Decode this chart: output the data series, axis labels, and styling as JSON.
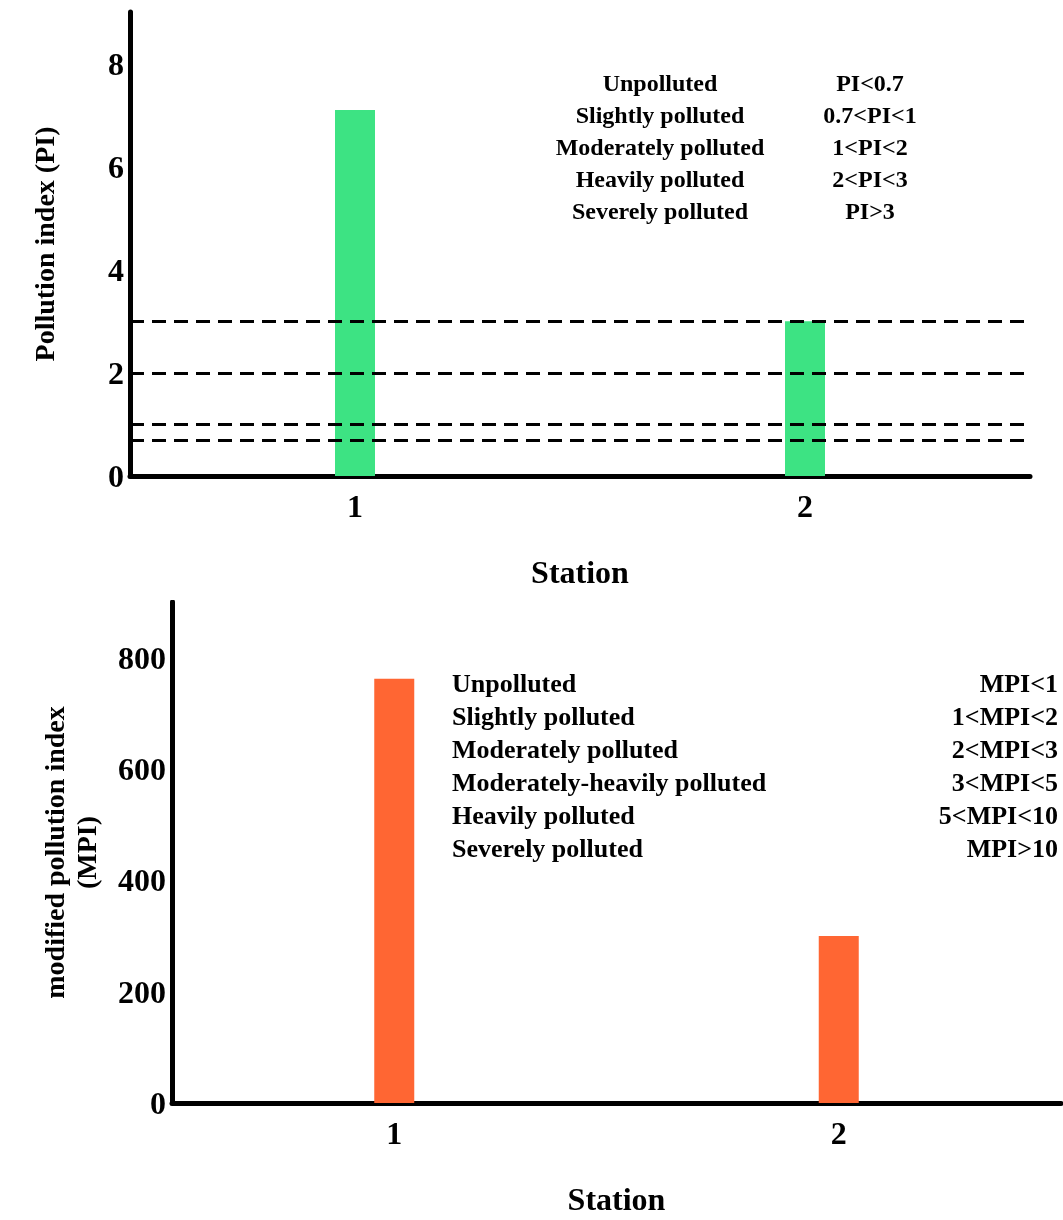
{
  "chart_data": [
    {
      "type": "bar",
      "xlabel": "Station",
      "ylabel": "Pollution index (PI)",
      "categories": [
        "1",
        "2"
      ],
      "series": [
        {
          "color": "#3de383",
          "values": [
            7.1,
            3.0
          ]
        }
      ],
      "ylim": [
        0,
        9
      ],
      "yticks": [
        0,
        2,
        4,
        6,
        8
      ],
      "grid": false,
      "ref_lines": [
        {
          "axis": "y",
          "value": 3,
          "color": "#000000",
          "line_style": "dashed"
        },
        {
          "axis": "y",
          "value": 2,
          "color": "#000000",
          "line_style": "dashed"
        },
        {
          "axis": "y",
          "value": 1,
          "color": "#000000",
          "line_style": "dashed"
        },
        {
          "axis": "y",
          "value": 0.7,
          "color": "#000000",
          "line_style": "dashed"
        }
      ],
      "annotations": [
        "Unpolluted",
        "PI<0.7",
        "Slightly polluted",
        "0.7<PI<1",
        "Moderately polluted",
        "1<PI<2",
        "Heavily polluted",
        "2<PI<3",
        "Severely polluted",
        "PI>3"
      ]
    },
    {
      "type": "bar",
      "xlabel": "Station",
      "ylabel": "modified pollution index\n(MPI)",
      "categories": [
        "1",
        "2"
      ],
      "series": [
        {
          "color": "#ff6633",
          "values": [
            762,
            300
          ]
        }
      ],
      "ylim": [
        0,
        900
      ],
      "yticks": [
        0,
        200,
        400,
        600,
        800
      ],
      "grid": false,
      "annotations": [
        "Unpolluted",
        "MPI<1",
        "Slightly polluted",
        "1<MPI<2",
        "Moderately polluted",
        "2<MPI<3",
        "Moderately-heavily polluted",
        "3<MPI<5",
        "Heavily polluted",
        "5<MPI<10",
        "Severely polluted",
        "MPI>10"
      ]
    }
  ]
}
